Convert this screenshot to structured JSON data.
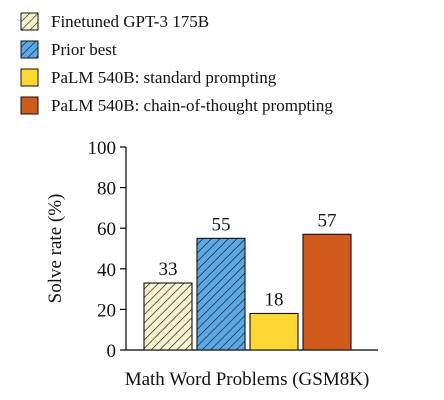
{
  "chart_data": {
    "type": "bar",
    "categories": [
      "Math Word Problems (GSM8K)"
    ],
    "series": [
      {
        "name": "Finetuned GPT-3 175B",
        "values": [
          33
        ],
        "value_label": "33",
        "color": "#f7f3cf",
        "pattern": "diagonal-hatch"
      },
      {
        "name": "Prior best",
        "values": [
          55
        ],
        "value_label": "55",
        "color": "#5aa9e6",
        "pattern": "diagonal-hatch"
      },
      {
        "name": "PaLM 540B: standard prompting",
        "values": [
          18
        ],
        "value_label": "18",
        "color": "#fdd835",
        "pattern": "solid"
      },
      {
        "name": "PaLM 540B: chain-of-thought prompting",
        "values": [
          57
        ],
        "value_label": "57",
        "color": "#cf5a1c",
        "pattern": "solid"
      }
    ],
    "xlabel": "Math Word Problems (GSM8K)",
    "ylabel": "Solve rate (%)",
    "ylim": [
      0,
      100
    ],
    "yticks": [
      "0",
      "20",
      "40",
      "60",
      "80",
      "100"
    ],
    "legend_position": "top",
    "grid": false
  }
}
